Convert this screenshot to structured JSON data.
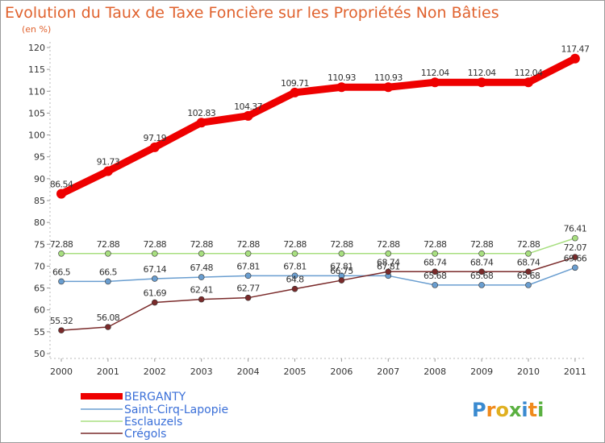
{
  "chart_data": {
    "type": "line",
    "title": "Evolution du Taux de Taxe Foncière sur les Propriétés Non Bâties",
    "ylabel": "(en %)",
    "ylim": [
      50,
      120
    ],
    "yticks": [
      50,
      55,
      60,
      65,
      70,
      75,
      80,
      85,
      90,
      95,
      100,
      105,
      110,
      115,
      120
    ],
    "x": [
      "2000",
      "2001",
      "2002",
      "2003",
      "2004",
      "2005",
      "2006",
      "2007",
      "2008",
      "2009",
      "2010",
      "2011"
    ],
    "grid": false,
    "legend": "bottom-left",
    "series": [
      {
        "name": "BERGANTY",
        "color": "#ee0000",
        "width": 9,
        "values": [
          86.54,
          91.73,
          97.19,
          102.83,
          104.37,
          109.71,
          110.93,
          110.93,
          112.04,
          112.04,
          112.04,
          117.47
        ],
        "labels": [
          "86.54",
          "91.73",
          "97.19",
          "102.83",
          "104.37",
          "109.71",
          "110.93",
          "110.93",
          "112.04",
          "112.04",
          "112.04",
          "117.47"
        ]
      },
      {
        "name": "Saint-Cirq-Lapopie",
        "color": "#6a9ed0",
        "width": 1.5,
        "values": [
          66.5,
          66.5,
          67.14,
          67.48,
          67.81,
          67.81,
          67.81,
          67.81,
          65.68,
          65.68,
          65.68,
          69.66
        ],
        "labels": [
          "66.5",
          "66.5",
          "67.14",
          "67.48",
          "67.81",
          "67.81",
          "67.81",
          "67.81",
          "65.68",
          "65.68",
          "65.68",
          "69.66"
        ]
      },
      {
        "name": "Esclauzels",
        "color": "#a8df80",
        "width": 1.5,
        "values": [
          72.88,
          72.88,
          72.88,
          72.88,
          72.88,
          72.88,
          72.88,
          72.88,
          72.88,
          72.88,
          72.88,
          76.41
        ],
        "labels": [
          "72.88",
          "72.88",
          "72.88",
          "72.88",
          "72.88",
          "72.88",
          "72.88",
          "72.88",
          "72.88",
          "72.88",
          "72.88",
          "76.41"
        ]
      },
      {
        "name": "Crégols",
        "color": "#7a2a2a",
        "width": 1.5,
        "values": [
          55.32,
          56.08,
          61.69,
          62.41,
          62.77,
          64.8,
          66.75,
          68.74,
          68.74,
          68.74,
          68.74,
          72.07
        ],
        "labels": [
          "55.32",
          "56.08",
          "61.69",
          "62.41",
          "62.77",
          "64.8",
          "66.75",
          "68.74",
          "68.74",
          "68.74",
          "68.74",
          "72.07"
        ]
      }
    ]
  },
  "logo": {
    "text": "Proxiti"
  }
}
